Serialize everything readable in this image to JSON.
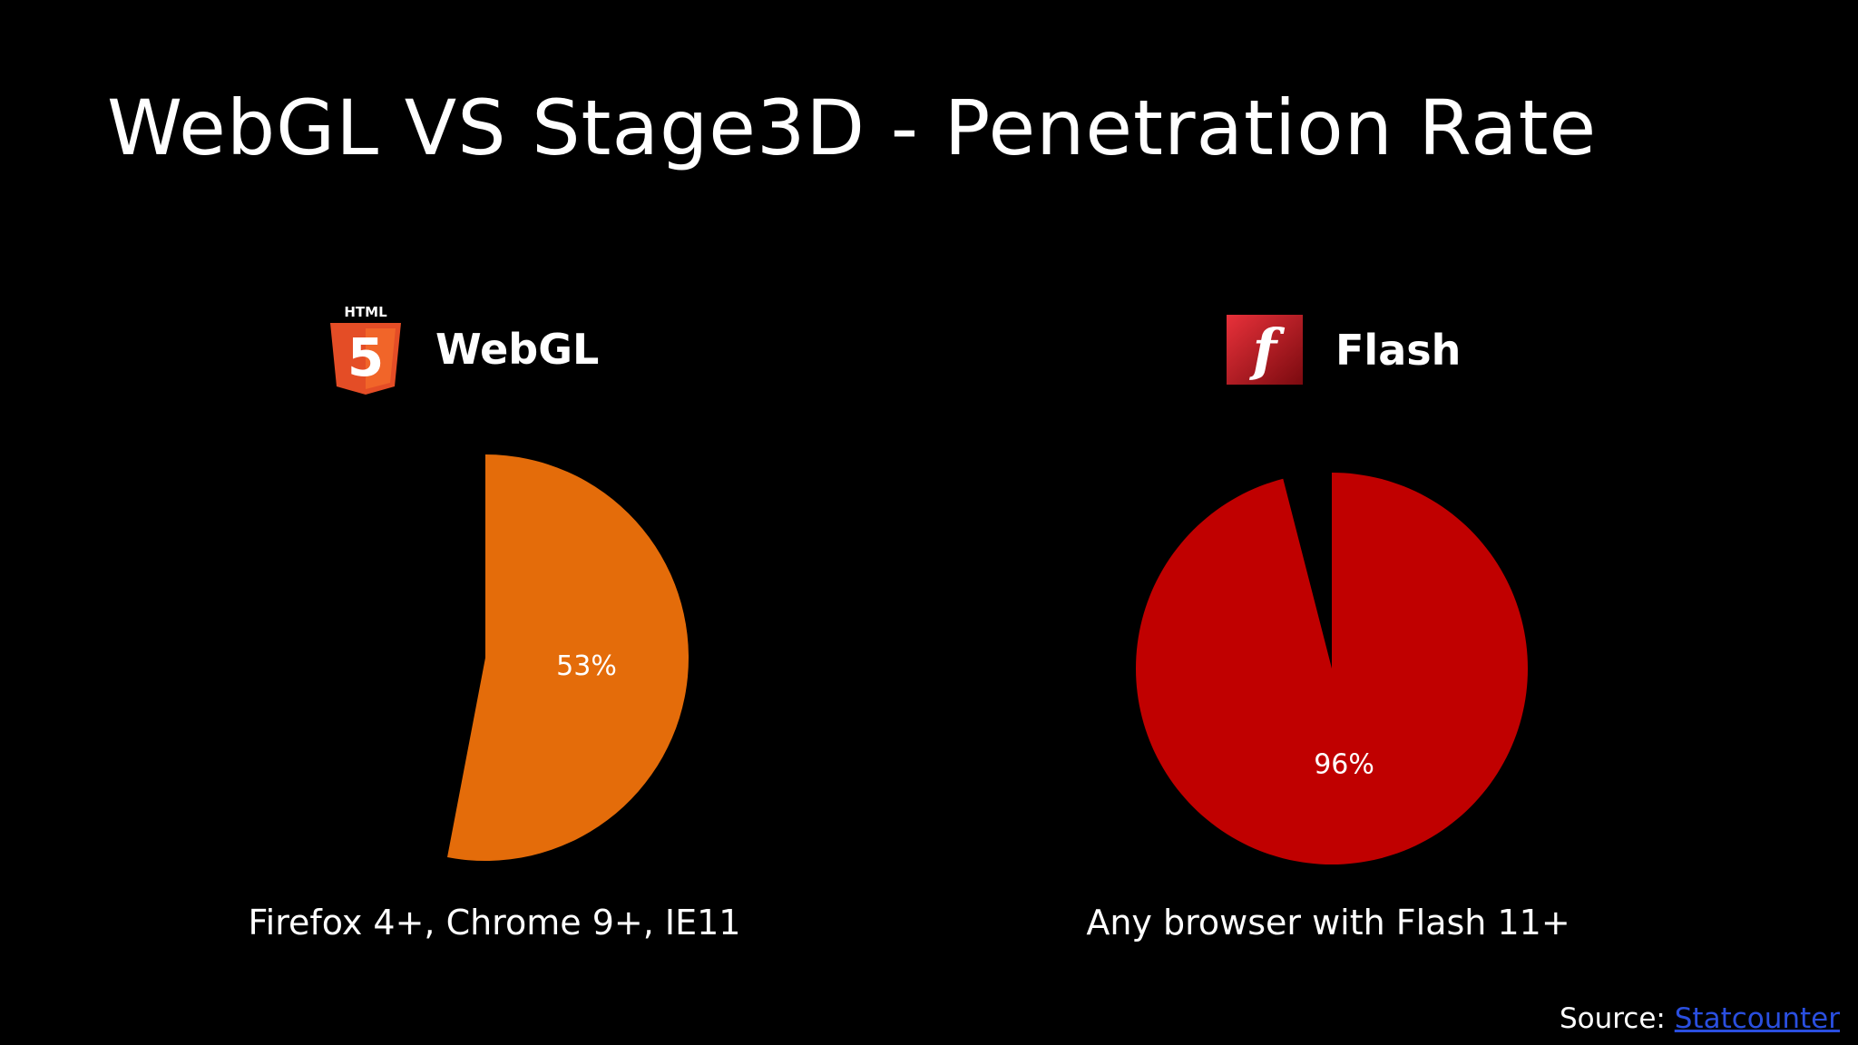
{
  "slide": {
    "title": "WebGL VS Stage3D - Penetration Rate",
    "source_prefix": "Source: ",
    "source_link": "Statcounter"
  },
  "logos": {
    "html5_text": "HTML",
    "html5_digit": "5",
    "flash_letter": "f"
  },
  "colors": {
    "background": "#000000",
    "webgl_slice": "#e46c0a",
    "flash_slice": "#c00000",
    "html5_orange": "#e44d26",
    "link": "#2a4fe0"
  },
  "chart_data": [
    {
      "type": "pie",
      "title": "WebGL",
      "logo": "html5-icon",
      "values": [
        53
      ],
      "labels": [
        "53%"
      ],
      "color": "#e46c0a",
      "caption": "Firefox 4+, Chrome 9+, IE11"
    },
    {
      "type": "pie",
      "title": "Flash",
      "logo": "flash-icon",
      "values": [
        96
      ],
      "labels": [
        "96%"
      ],
      "color": "#c00000",
      "caption": "Any browser with Flash 11+"
    }
  ]
}
